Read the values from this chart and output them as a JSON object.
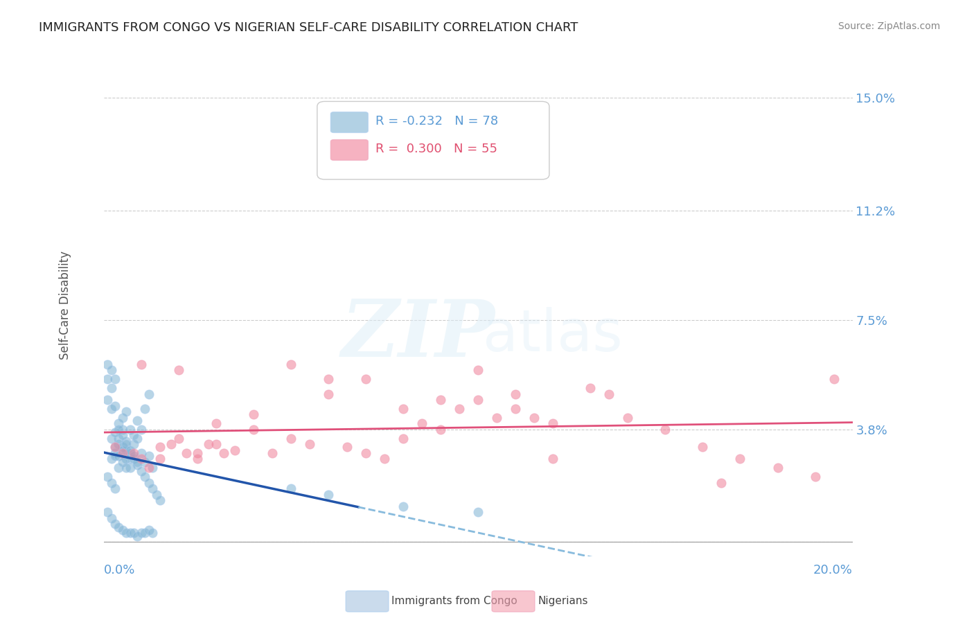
{
  "title": "IMMIGRANTS FROM CONGO VS NIGERIAN SELF-CARE DISABILITY CORRELATION CHART",
  "source": "Source: ZipAtlas.com",
  "ylabel": "Self-Care Disability",
  "xlim": [
    0.0,
    0.2
  ],
  "ylim": [
    -0.005,
    0.165
  ],
  "yticks": [
    0.0,
    0.038,
    0.075,
    0.112,
    0.15
  ],
  "ytick_labels": [
    "",
    "3.8%",
    "7.5%",
    "11.2%",
    "15.0%"
  ],
  "bottom_legend": [
    "Immigrants from Congo",
    "Nigerians"
  ],
  "bottom_legend_colors": [
    "#a8c4e0",
    "#f4a0b0"
  ],
  "congo_color": "#7fb3d3",
  "nigerian_color": "#f08098",
  "trendline_congo_solid_color": "#2255aa",
  "trendline_congo_dashed_color": "#88bbdd",
  "trendline_nigerian_color": "#e0507a",
  "legend_texts": [
    "R = -0.232   N = 78",
    "R =  0.300   N = 55"
  ],
  "legend_text_colors": [
    "#5b9bd5",
    "#e05070"
  ],
  "congo_points": [
    [
      0.002,
      0.028
    ],
    [
      0.003,
      0.03
    ],
    [
      0.004,
      0.025
    ],
    [
      0.005,
      0.032
    ],
    [
      0.006,
      0.031
    ],
    [
      0.007,
      0.028
    ],
    [
      0.008,
      0.033
    ],
    [
      0.009,
      0.035
    ],
    [
      0.01,
      0.03
    ],
    [
      0.011,
      0.027
    ],
    [
      0.012,
      0.029
    ],
    [
      0.013,
      0.025
    ],
    [
      0.001,
      0.022
    ],
    [
      0.002,
      0.02
    ],
    [
      0.003,
      0.018
    ],
    [
      0.004,
      0.04
    ],
    [
      0.005,
      0.042
    ],
    [
      0.006,
      0.044
    ],
    [
      0.007,
      0.038
    ],
    [
      0.008,
      0.036
    ],
    [
      0.009,
      0.041
    ],
    [
      0.01,
      0.038
    ],
    [
      0.011,
      0.045
    ],
    [
      0.012,
      0.05
    ],
    [
      0.001,
      0.048
    ],
    [
      0.002,
      0.052
    ],
    [
      0.003,
      0.046
    ],
    [
      0.004,
      0.033
    ],
    [
      0.005,
      0.031
    ],
    [
      0.006,
      0.028
    ],
    [
      0.007,
      0.025
    ],
    [
      0.003,
      0.029
    ],
    [
      0.004,
      0.035
    ],
    [
      0.005,
      0.038
    ],
    [
      0.006,
      0.034
    ],
    [
      0.007,
      0.03
    ],
    [
      0.008,
      0.028
    ],
    [
      0.009,
      0.026
    ],
    [
      0.01,
      0.024
    ],
    [
      0.011,
      0.022
    ],
    [
      0.012,
      0.02
    ],
    [
      0.013,
      0.018
    ],
    [
      0.014,
      0.016
    ],
    [
      0.015,
      0.014
    ],
    [
      0.001,
      0.06
    ],
    [
      0.002,
      0.058
    ],
    [
      0.003,
      0.055
    ],
    [
      0.001,
      0.01
    ],
    [
      0.002,
      0.008
    ],
    [
      0.003,
      0.006
    ],
    [
      0.004,
      0.005
    ],
    [
      0.005,
      0.004
    ],
    [
      0.006,
      0.003
    ],
    [
      0.007,
      0.003
    ],
    [
      0.008,
      0.003
    ],
    [
      0.009,
      0.002
    ],
    [
      0.01,
      0.003
    ],
    [
      0.011,
      0.003
    ],
    [
      0.012,
      0.004
    ],
    [
      0.013,
      0.003
    ],
    [
      0.002,
      0.035
    ],
    [
      0.003,
      0.037
    ],
    [
      0.004,
      0.038
    ],
    [
      0.005,
      0.036
    ],
    [
      0.006,
      0.033
    ],
    [
      0.007,
      0.031
    ],
    [
      0.008,
      0.029
    ],
    [
      0.009,
      0.027
    ],
    [
      0.001,
      0.055
    ],
    [
      0.002,
      0.045
    ],
    [
      0.05,
      0.018
    ],
    [
      0.06,
      0.016
    ],
    [
      0.08,
      0.012
    ],
    [
      0.1,
      0.01
    ],
    [
      0.003,
      0.032
    ],
    [
      0.004,
      0.029
    ],
    [
      0.005,
      0.027
    ],
    [
      0.006,
      0.025
    ]
  ],
  "nigerian_points": [
    [
      0.005,
      0.03
    ],
    [
      0.01,
      0.028
    ],
    [
      0.015,
      0.032
    ],
    [
      0.02,
      0.035
    ],
    [
      0.025,
      0.03
    ],
    [
      0.03,
      0.033
    ],
    [
      0.035,
      0.031
    ],
    [
      0.04,
      0.038
    ],
    [
      0.045,
      0.03
    ],
    [
      0.05,
      0.035
    ],
    [
      0.055,
      0.033
    ],
    [
      0.06,
      0.05
    ],
    [
      0.065,
      0.032
    ],
    [
      0.07,
      0.03
    ],
    [
      0.075,
      0.028
    ],
    [
      0.08,
      0.035
    ],
    [
      0.085,
      0.04
    ],
    [
      0.09,
      0.038
    ],
    [
      0.095,
      0.045
    ],
    [
      0.1,
      0.048
    ],
    [
      0.105,
      0.042
    ],
    [
      0.11,
      0.05
    ],
    [
      0.115,
      0.042
    ],
    [
      0.12,
      0.04
    ],
    [
      0.01,
      0.06
    ],
    [
      0.02,
      0.058
    ],
    [
      0.03,
      0.04
    ],
    [
      0.04,
      0.043
    ],
    [
      0.05,
      0.06
    ],
    [
      0.06,
      0.055
    ],
    [
      0.07,
      0.055
    ],
    [
      0.08,
      0.045
    ],
    [
      0.09,
      0.048
    ],
    [
      0.1,
      0.058
    ],
    [
      0.11,
      0.045
    ],
    [
      0.13,
      0.052
    ],
    [
      0.14,
      0.042
    ],
    [
      0.15,
      0.038
    ],
    [
      0.16,
      0.032
    ],
    [
      0.165,
      0.02
    ],
    [
      0.17,
      0.028
    ],
    [
      0.18,
      0.025
    ],
    [
      0.19,
      0.022
    ],
    [
      0.195,
      0.055
    ],
    [
      0.003,
      0.032
    ],
    [
      0.008,
      0.03
    ],
    [
      0.012,
      0.025
    ],
    [
      0.015,
      0.028
    ],
    [
      0.018,
      0.033
    ],
    [
      0.022,
      0.03
    ],
    [
      0.025,
      0.028
    ],
    [
      0.028,
      0.033
    ],
    [
      0.032,
      0.03
    ],
    [
      0.12,
      0.028
    ],
    [
      0.135,
      0.05
    ]
  ]
}
